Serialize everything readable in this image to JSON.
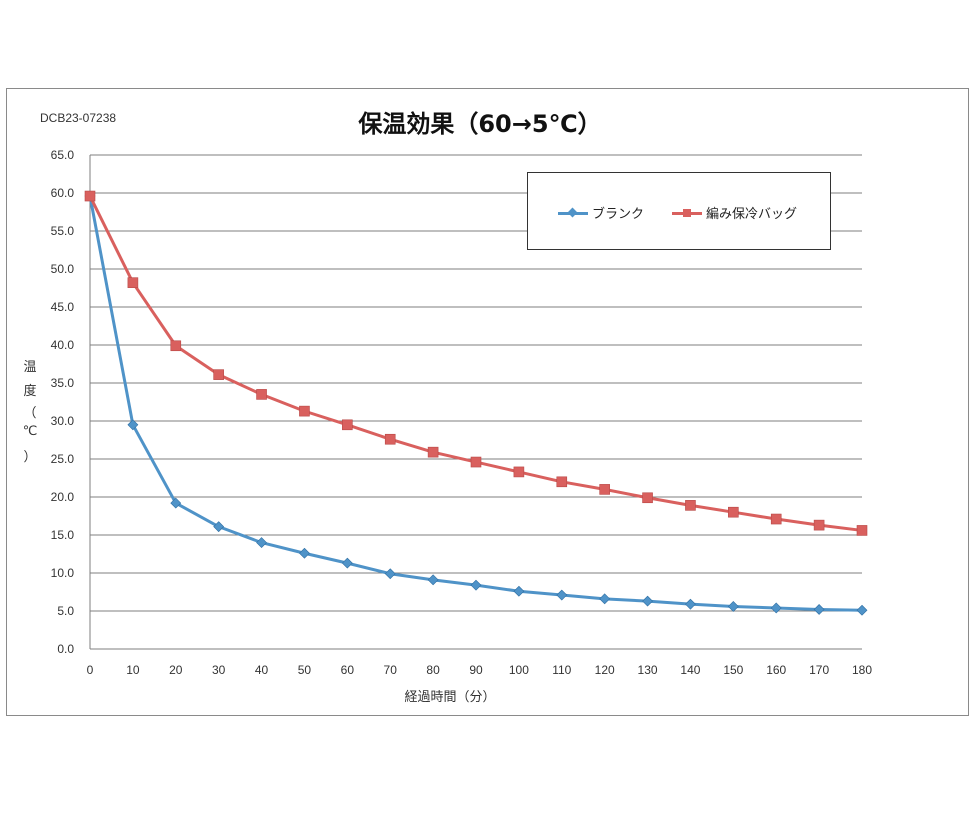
{
  "doc_code": "DCB23-07238",
  "chart_data": {
    "type": "line",
    "title": "保温効果（60→5℃）",
    "xlabel": "経過時間（分）",
    "ylabel": "温度（℃）",
    "ylabel_chars": [
      "温",
      "度",
      "（",
      "℃",
      "）"
    ],
    "x": [
      0,
      10,
      20,
      30,
      40,
      50,
      60,
      70,
      80,
      90,
      100,
      110,
      120,
      130,
      140,
      150,
      160,
      170,
      180
    ],
    "x_ticks": [
      "0",
      "10",
      "20",
      "30",
      "40",
      "50",
      "60",
      "70",
      "80",
      "90",
      "100",
      "110",
      "120",
      "130",
      "140",
      "150",
      "160",
      "170",
      "180"
    ],
    "xlim": [
      0,
      180
    ],
    "ylim": [
      0,
      65
    ],
    "y_ticks": [
      "0.0",
      "5.0",
      "10.0",
      "15.0",
      "20.0",
      "25.0",
      "30.0",
      "35.0",
      "40.0",
      "45.0",
      "50.0",
      "55.0",
      "60.0",
      "65.0"
    ],
    "grid": true,
    "legend_position": "top-right",
    "series": [
      {
        "name": "ブランク",
        "marker": "diamond",
        "color": "#4f93c8",
        "values": [
          59.6,
          29.5,
          19.2,
          16.1,
          14.0,
          12.6,
          11.3,
          9.9,
          9.1,
          8.4,
          7.6,
          7.1,
          6.6,
          6.3,
          5.9,
          5.6,
          5.4,
          5.2,
          5.1
        ]
      },
      {
        "name": "編み保冷バッグ",
        "marker": "square",
        "color": "#d9605e",
        "values": [
          59.6,
          48.2,
          39.9,
          36.1,
          33.5,
          31.3,
          29.5,
          27.6,
          25.9,
          24.6,
          23.3,
          22.0,
          21.0,
          19.9,
          18.9,
          18.0,
          17.1,
          16.3,
          15.6
        ]
      }
    ]
  }
}
